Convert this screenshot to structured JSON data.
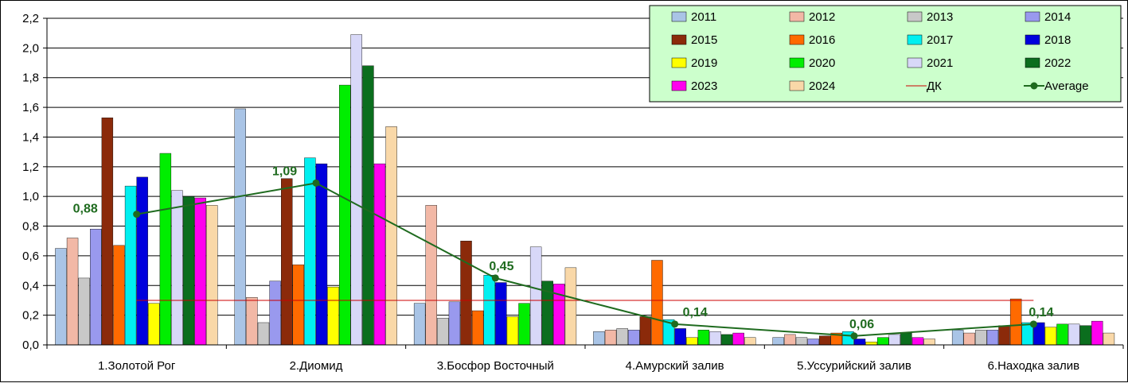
{
  "chart_data": {
    "type": "bar",
    "title": "",
    "xlabel": "",
    "ylabel": "",
    "ylim": [
      0,
      2.2
    ],
    "y_ticks": [
      "0,0",
      "0,2",
      "0,4",
      "0,6",
      "0,8",
      "1,0",
      "1,2",
      "1,4",
      "1,6",
      "1,8",
      "2,0",
      "2,2"
    ],
    "grid": true,
    "legend_position": "top-right",
    "categories": [
      "1.Золотой Рог",
      "2.Диомид",
      "3.Босфор Восточный",
      "4.Амурский залив",
      "5.Уссурийский залив",
      "6.Находка залив"
    ],
    "series": [
      {
        "name": "2011",
        "color": "#a9c4e6",
        "values": [
          0.65,
          1.59,
          0.28,
          0.09,
          0.05,
          0.1
        ]
      },
      {
        "name": "2012",
        "color": "#f2b8a6",
        "values": [
          0.72,
          0.32,
          0.94,
          0.1,
          0.07,
          0.08
        ]
      },
      {
        "name": "2013",
        "color": "#c8c8c8",
        "values": [
          0.45,
          0.15,
          0.18,
          0.11,
          0.05,
          0.1
        ]
      },
      {
        "name": "2014",
        "color": "#9999ee",
        "values": [
          0.78,
          0.43,
          0.29,
          0.1,
          0.04,
          0.1
        ]
      },
      {
        "name": "2015",
        "color": "#8b2a0a",
        "values": [
          1.53,
          1.12,
          0.7,
          0.19,
          0.06,
          0.13
        ]
      },
      {
        "name": "2016",
        "color": "#ff6a00",
        "values": [
          0.67,
          0.54,
          0.23,
          0.57,
          0.08,
          0.31
        ]
      },
      {
        "name": "2017",
        "color": "#00f0f0",
        "values": [
          1.07,
          1.26,
          0.47,
          0.17,
          0.09,
          0.15
        ]
      },
      {
        "name": "2018",
        "color": "#0000dd",
        "values": [
          1.13,
          1.22,
          0.42,
          0.11,
          0.04,
          0.15
        ]
      },
      {
        "name": "2019",
        "color": "#ffff00",
        "values": [
          0.28,
          0.39,
          0.19,
          0.05,
          0.02,
          0.12
        ]
      },
      {
        "name": "2020",
        "color": "#00ee00",
        "values": [
          1.29,
          1.75,
          0.28,
          0.1,
          0.05,
          0.14
        ]
      },
      {
        "name": "2021",
        "color": "#d8d8f8",
        "values": [
          1.04,
          2.09,
          0.66,
          0.09,
          0.07,
          0.14
        ]
      },
      {
        "name": "2022",
        "color": "#0b6e1e",
        "values": [
          1.0,
          1.88,
          0.43,
          0.07,
          0.08,
          0.13
        ]
      },
      {
        "name": "2023",
        "color": "#ff00ee",
        "values": [
          0.99,
          1.22,
          0.41,
          0.08,
          0.05,
          0.16
        ]
      },
      {
        "name": "2024",
        "color": "#f9d8a8",
        "values": [
          0.94,
          1.47,
          0.52,
          0.05,
          0.04,
          0.08
        ]
      }
    ],
    "dk": {
      "name": "ДК",
      "color": "#cc0000",
      "value": 0.3
    },
    "average": {
      "name": "Average",
      "color": "#1f6b1f",
      "values": [
        0.88,
        1.09,
        0.45,
        0.14,
        0.06,
        0.14
      ],
      "labels": [
        "0,88",
        "1,09",
        "0,45",
        "0,14",
        "0,06",
        "0,14"
      ]
    },
    "legend_background": "#ccffcc"
  }
}
